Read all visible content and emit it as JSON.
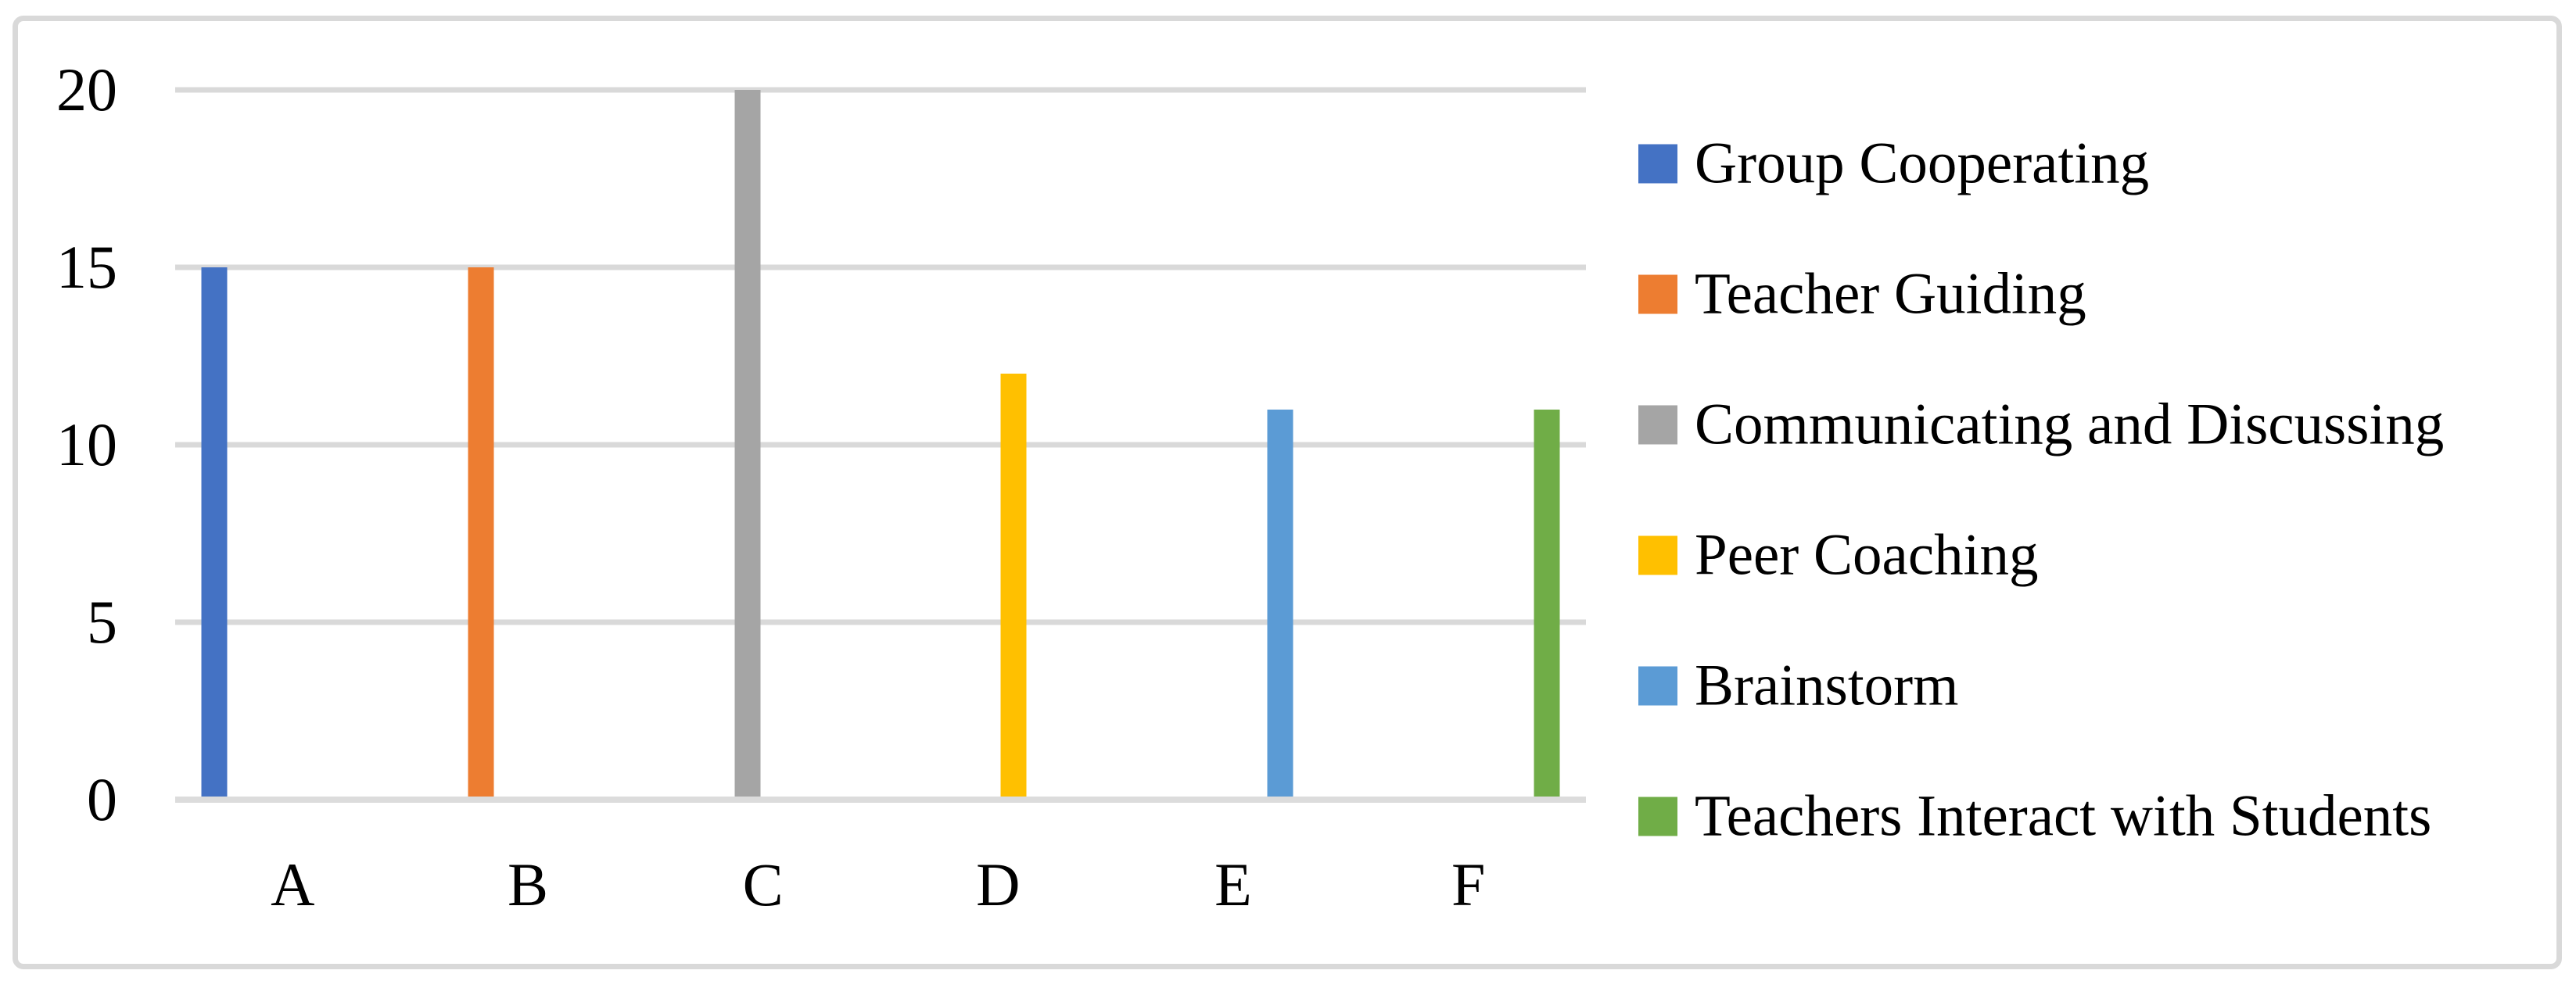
{
  "chart_data": {
    "type": "bar",
    "title": "",
    "xlabel": "",
    "ylabel": "",
    "categories": [
      "A",
      "B",
      "C",
      "D",
      "E",
      "F"
    ],
    "y_ticks": [
      0,
      5,
      10,
      15,
      20
    ],
    "ylim": [
      0,
      20
    ],
    "grid": true,
    "legend_position": "right",
    "bars": [
      {
        "category": "A",
        "legend": "Group Cooperating",
        "value": 15,
        "color": "#4472C4"
      },
      {
        "category": "B",
        "legend": "Teacher Guiding",
        "value": 15,
        "color": "#ED7D31"
      },
      {
        "category": "C",
        "legend": "Communicating and Discussing",
        "value": 20,
        "color": "#A5A5A5"
      },
      {
        "category": "D",
        "legend": "Peer Coaching",
        "value": 12,
        "color": "#FFC000"
      },
      {
        "category": "E",
        "legend": "Brainstorm",
        "value": 11,
        "color": "#5B9BD5"
      },
      {
        "category": "F",
        "legend": "Teachers Interact with Students",
        "value": 11,
        "color": "#70AD47"
      }
    ],
    "colors": {
      "gridline": "#D9D9D9",
      "axis_line": "#DCDCDC",
      "border": "#D9D9D9",
      "text": "#000000",
      "background": "#FFFFFF"
    }
  }
}
